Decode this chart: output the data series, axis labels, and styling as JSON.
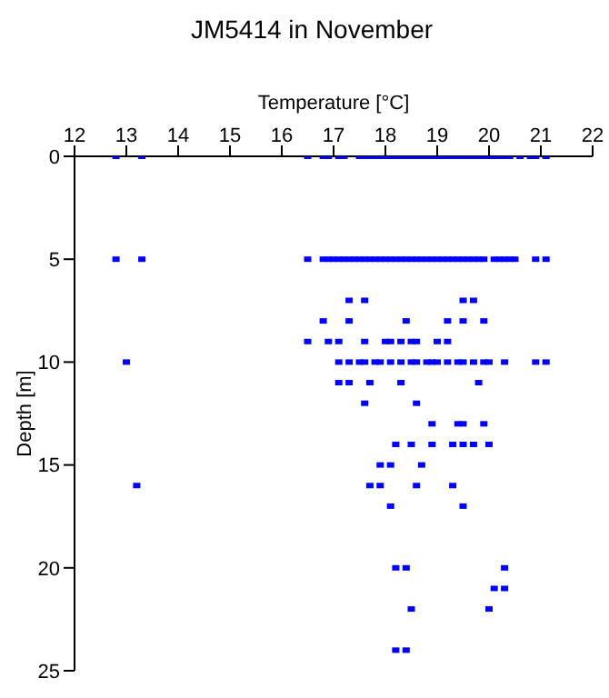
{
  "chart_data": {
    "type": "scatter",
    "title": "JM5414 in November",
    "xlabel": "Temperature [°C]",
    "ylabel": "Depth [m]",
    "xlim": [
      12,
      22
    ],
    "xticks": [
      12,
      13,
      14,
      15,
      16,
      17,
      18,
      19,
      20,
      21,
      22
    ],
    "ylim": [
      25,
      0
    ],
    "yticks": [
      0,
      5,
      10,
      15,
      20,
      25
    ],
    "grid": false,
    "legend": false,
    "marker": "square",
    "series": [
      {
        "color": "#0000ff",
        "x": [
          12.8,
          13.3,
          16.5,
          16.8,
          16.9,
          17.1,
          17.2,
          17.5,
          17.6,
          17.7,
          17.8,
          17.9,
          18.0,
          18.1,
          18.2,
          18.3,
          18.4,
          18.5,
          18.6,
          18.7,
          18.8,
          18.9,
          19.0,
          19.1,
          19.2,
          19.3,
          19.4,
          19.5,
          19.6,
          19.7,
          19.8,
          19.9,
          20.0,
          20.1,
          20.2,
          20.3,
          20.4,
          20.6,
          20.8,
          20.9,
          21.1,
          12.8,
          13.3,
          16.5,
          16.8,
          16.9,
          17.0,
          17.1,
          17.2,
          17.3,
          17.4,
          17.5,
          17.6,
          17.7,
          17.8,
          17.9,
          18.0,
          18.1,
          18.2,
          18.3,
          18.4,
          18.5,
          18.6,
          18.7,
          18.8,
          18.9,
          19.0,
          19.1,
          19.2,
          19.3,
          19.4,
          19.5,
          19.6,
          19.7,
          19.8,
          19.9,
          20.1,
          20.2,
          20.3,
          20.4,
          20.5,
          20.9,
          21.1,
          17.3,
          17.6,
          19.5,
          19.7,
          16.8,
          17.3,
          18.4,
          19.2,
          19.5,
          19.9,
          16.5,
          16.9,
          17.1,
          17.6,
          18.0,
          18.1,
          18.3,
          18.5,
          18.6,
          19.0,
          19.2,
          13.0,
          17.1,
          17.3,
          17.5,
          17.6,
          17.8,
          17.9,
          18.1,
          18.3,
          18.5,
          18.6,
          18.8,
          18.9,
          19.0,
          19.2,
          19.4,
          19.5,
          19.7,
          19.9,
          20.0,
          20.3,
          20.9,
          21.1,
          17.1,
          17.3,
          17.7,
          18.3,
          19.8,
          17.6,
          18.6,
          18.9,
          19.4,
          19.5,
          19.9,
          18.2,
          18.5,
          18.9,
          19.3,
          19.5,
          19.7,
          20.0,
          17.9,
          18.1,
          18.7,
          13.2,
          17.7,
          17.9,
          18.6,
          19.3,
          18.1,
          19.5,
          18.2,
          18.4,
          20.3,
          20.1,
          20.3,
          18.5,
          20.0,
          18.2,
          18.4
        ],
        "values": [
          0,
          0,
          0,
          0,
          0,
          0,
          0,
          0,
          0,
          0,
          0,
          0,
          0,
          0,
          0,
          0,
          0,
          0,
          0,
          0,
          0,
          0,
          0,
          0,
          0,
          0,
          0,
          0,
          0,
          0,
          0,
          0,
          0,
          0,
          0,
          0,
          0,
          0,
          0,
          0,
          0,
          5,
          5,
          5,
          5,
          5,
          5,
          5,
          5,
          5,
          5,
          5,
          5,
          5,
          5,
          5,
          5,
          5,
          5,
          5,
          5,
          5,
          5,
          5,
          5,
          5,
          5,
          5,
          5,
          5,
          5,
          5,
          5,
          5,
          5,
          5,
          5,
          5,
          5,
          5,
          5,
          5,
          5,
          7,
          7,
          7,
          7,
          8,
          8,
          8,
          8,
          8,
          8,
          9,
          9,
          9,
          9,
          9,
          9,
          9,
          9,
          9,
          9,
          9,
          10,
          10,
          10,
          10,
          10,
          10,
          10,
          10,
          10,
          10,
          10,
          10,
          10,
          10,
          10,
          10,
          10,
          10,
          10,
          10,
          10,
          10,
          10,
          11,
          11,
          11,
          11,
          11,
          12,
          12,
          13,
          13,
          13,
          13,
          14,
          14,
          14,
          14,
          14,
          14,
          14,
          15,
          15,
          15,
          16,
          16,
          16,
          16,
          16,
          17,
          17,
          20,
          20,
          20,
          21,
          21,
          22,
          22,
          24,
          24
        ]
      }
    ]
  }
}
